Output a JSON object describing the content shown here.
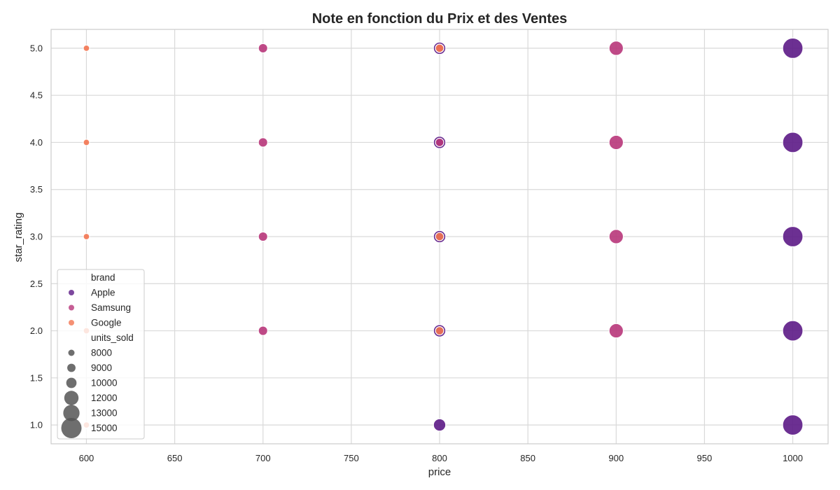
{
  "chart_data": {
    "type": "scatter",
    "title": "Note en fonction du Prix et des Ventes",
    "xlabel": "price",
    "ylabel": "star_rating",
    "xlim": [
      580,
      1020
    ],
    "ylim": [
      0.8,
      5.2
    ],
    "x_ticks": [
      600,
      650,
      700,
      750,
      800,
      850,
      900,
      950,
      1000
    ],
    "y_ticks": [
      1.0,
      1.5,
      2.0,
      2.5,
      3.0,
      3.5,
      4.0,
      4.5,
      5.0
    ],
    "grid": true,
    "legend_placement": "lower-left",
    "hue": {
      "title": "brand",
      "entries": [
        {
          "name": "Apple",
          "color": "#5c1a86"
        },
        {
          "name": "Samsung",
          "color": "#b8367a"
        },
        {
          "name": "Google",
          "color": "#f37651"
        }
      ]
    },
    "size": {
      "title": "units_sold",
      "entries": [
        8000,
        9000,
        10000,
        12000,
        13000,
        15000
      ]
    },
    "series": [
      {
        "name": "Apple",
        "points": [
          {
            "x": 800,
            "y": 5,
            "units_sold": 11000
          },
          {
            "x": 800,
            "y": 4,
            "units_sold": 11000
          },
          {
            "x": 800,
            "y": 3,
            "units_sold": 11000
          },
          {
            "x": 800,
            "y": 2,
            "units_sold": 11000
          },
          {
            "x": 800,
            "y": 1,
            "units_sold": 11000
          },
          {
            "x": 1000,
            "y": 5,
            "units_sold": 15000
          },
          {
            "x": 1000,
            "y": 4,
            "units_sold": 15000
          },
          {
            "x": 1000,
            "y": 3,
            "units_sold": 15000
          },
          {
            "x": 1000,
            "y": 2,
            "units_sold": 15000
          },
          {
            "x": 1000,
            "y": 1,
            "units_sold": 15000
          }
        ]
      },
      {
        "name": "Samsung",
        "points": [
          {
            "x": 700,
            "y": 5,
            "units_sold": 9500
          },
          {
            "x": 700,
            "y": 4,
            "units_sold": 9500
          },
          {
            "x": 700,
            "y": 3,
            "units_sold": 9500
          },
          {
            "x": 700,
            "y": 2,
            "units_sold": 9500
          },
          {
            "x": 800,
            "y": 5,
            "units_sold": 9000
          },
          {
            "x": 800,
            "y": 4,
            "units_sold": 9000
          },
          {
            "x": 900,
            "y": 5,
            "units_sold": 12000
          },
          {
            "x": 900,
            "y": 4,
            "units_sold": 12000
          },
          {
            "x": 900,
            "y": 3,
            "units_sold": 12000
          },
          {
            "x": 900,
            "y": 2,
            "units_sold": 12000
          }
        ]
      },
      {
        "name": "Google",
        "points": [
          {
            "x": 600,
            "y": 5,
            "units_sold": 8000
          },
          {
            "x": 600,
            "y": 4,
            "units_sold": 8000
          },
          {
            "x": 600,
            "y": 3,
            "units_sold": 8000
          },
          {
            "x": 600,
            "y": 2,
            "units_sold": 8000
          },
          {
            "x": 600,
            "y": 1,
            "units_sold": 8000
          },
          {
            "x": 800,
            "y": 5,
            "units_sold": 9000
          },
          {
            "x": 800,
            "y": 3,
            "units_sold": 9000
          },
          {
            "x": 800,
            "y": 2,
            "units_sold": 9000
          }
        ]
      }
    ]
  }
}
